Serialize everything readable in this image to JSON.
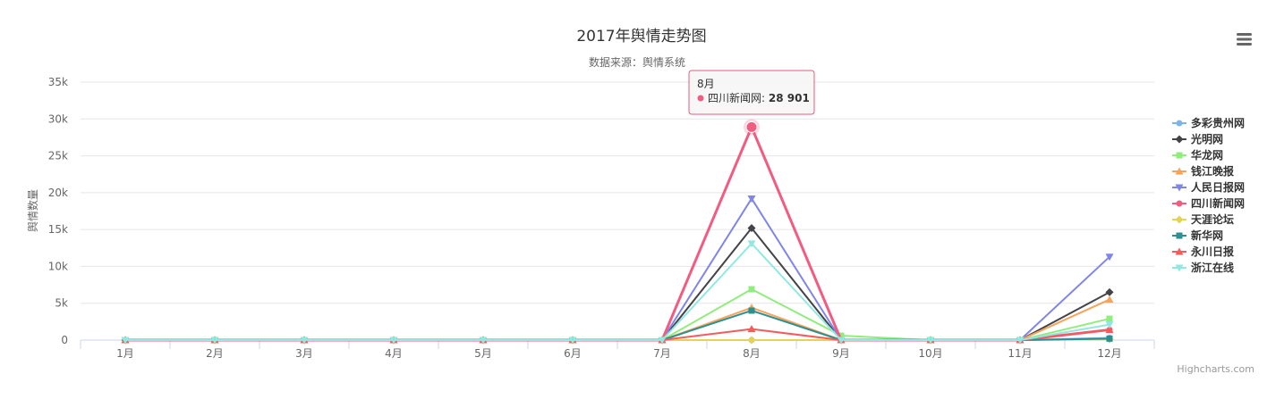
{
  "chart_data": {
    "type": "line",
    "title": "2017年舆情走势图",
    "subtitle": "数据来源：舆情系统",
    "ylabel": "舆情数量",
    "ylim": [
      0,
      35000
    ],
    "yticks": [
      0,
      5000,
      10000,
      15000,
      20000,
      25000,
      30000,
      35000
    ],
    "ytick_labels": [
      "0",
      "5k",
      "10k",
      "15k",
      "20k",
      "25k",
      "30k",
      "35k"
    ],
    "categories": [
      "1月",
      "2月",
      "3月",
      "4月",
      "5月",
      "6月",
      "7月",
      "8月",
      "9月",
      "10月",
      "11月",
      "12月"
    ],
    "grid": true,
    "legend_position": "right",
    "series": [
      {
        "name": "多彩贵州网",
        "color": "#7cb5ec",
        "marker": "circle",
        "values": [
          0,
          0,
          0,
          0,
          0,
          0,
          0,
          0,
          0,
          0,
          0,
          300
        ]
      },
      {
        "name": "光明网",
        "color": "#434348",
        "marker": "diamond",
        "values": [
          0,
          0,
          0,
          0,
          0,
          0,
          0,
          15200,
          0,
          0,
          0,
          6500
        ]
      },
      {
        "name": "华龙网",
        "color": "#90ed7d",
        "marker": "square",
        "values": [
          0,
          0,
          0,
          0,
          0,
          0,
          0,
          6900,
          600,
          0,
          0,
          2900
        ]
      },
      {
        "name": "钱江晚报",
        "color": "#f7a35c",
        "marker": "triangle",
        "values": [
          0,
          0,
          0,
          0,
          0,
          0,
          0,
          4400,
          0,
          0,
          0,
          5500
        ]
      },
      {
        "name": "人民日报网",
        "color": "#8085e9",
        "marker": "triangle-down",
        "values": [
          0,
          0,
          0,
          0,
          0,
          0,
          0,
          19200,
          0,
          0,
          0,
          11300
        ]
      },
      {
        "name": "四川新闻网",
        "color": "#f15c80",
        "marker": "circle",
        "values": [
          0,
          0,
          0,
          0,
          0,
          0,
          0,
          28901,
          0,
          0,
          0,
          1400
        ]
      },
      {
        "name": "天涯论坛",
        "color": "#e4d354",
        "marker": "diamond",
        "values": [
          0,
          0,
          0,
          0,
          0,
          0,
          0,
          0,
          0,
          0,
          0,
          100
        ]
      },
      {
        "name": "新华网",
        "color": "#2b908f",
        "marker": "square",
        "values": [
          0,
          0,
          0,
          0,
          0,
          0,
          0,
          4000,
          0,
          0,
          0,
          200
        ]
      },
      {
        "name": "永川日报",
        "color": "#f45b5b",
        "marker": "triangle",
        "values": [
          0,
          0,
          0,
          0,
          0,
          0,
          0,
          1500,
          0,
          0,
          0,
          1400
        ]
      },
      {
        "name": "浙江在线",
        "color": "#91e8e1",
        "marker": "triangle-down",
        "values": [
          0,
          0,
          0,
          0,
          0,
          0,
          0,
          13100,
          0,
          0,
          0,
          2100
        ]
      }
    ],
    "tooltip": {
      "category": "8月",
      "series_name": "四川新闻网",
      "separator": ": ",
      "value_text": "28 901",
      "color": "#f15c80"
    },
    "credits": "Highcharts.com"
  },
  "menu_icon": "hamburger-menu-icon"
}
